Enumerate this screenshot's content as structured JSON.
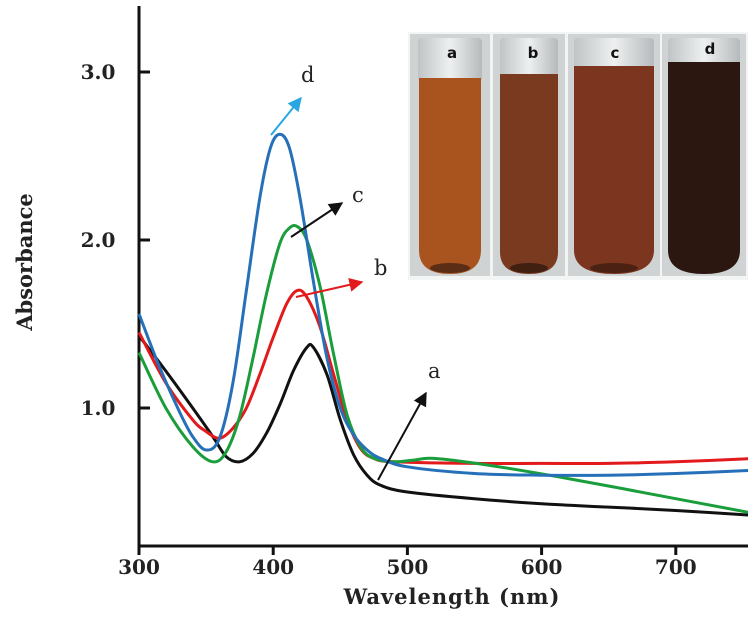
{
  "chart_data": {
    "type": "line",
    "xlabel": "Wavelength (nm)",
    "ylabel": "Absorbance",
    "xlim": [
      300,
      760
    ],
    "ylim": [
      0.32,
      3.5
    ],
    "x_ticks": [
      "300",
      "400",
      "500",
      "600",
      "700"
    ],
    "y_ticks": [
      "1.0",
      "2.0",
      "3.0"
    ],
    "grid": false,
    "series": [
      {
        "name": "a",
        "color": "#111111",
        "x": [
          300,
          320,
          340,
          355,
          365,
          375,
          385,
          395,
          405,
          415,
          425,
          430,
          440,
          450,
          460,
          470,
          480,
          500,
          550,
          600,
          650,
          700,
          760
        ],
        "y": [
          1.43,
          1.22,
          1.0,
          0.83,
          0.71,
          0.68,
          0.73,
          0.85,
          1.02,
          1.22,
          1.36,
          1.36,
          1.2,
          0.93,
          0.72,
          0.6,
          0.54,
          0.5,
          0.46,
          0.43,
          0.41,
          0.39,
          0.36
        ]
      },
      {
        "name": "b",
        "color": "#e31a1c",
        "x": [
          300,
          320,
          340,
          350,
          360,
          370,
          380,
          390,
          400,
          410,
          418,
          425,
          435,
          445,
          455,
          465,
          475,
          490,
          550,
          600,
          650,
          700,
          760
        ],
        "y": [
          1.45,
          1.15,
          0.93,
          0.86,
          0.82,
          0.88,
          1.0,
          1.2,
          1.42,
          1.62,
          1.7,
          1.66,
          1.48,
          1.2,
          0.93,
          0.76,
          0.7,
          0.68,
          0.67,
          0.67,
          0.67,
          0.68,
          0.7
        ]
      },
      {
        "name": "c",
        "color": "#1a9e3c",
        "x": [
          300,
          320,
          340,
          355,
          365,
          375,
          385,
          395,
          405,
          412,
          418,
          425,
          435,
          445,
          455,
          465,
          475,
          490,
          505,
          520,
          560,
          620,
          700,
          760
        ],
        "y": [
          1.33,
          1.0,
          0.77,
          0.68,
          0.74,
          0.95,
          1.3,
          1.68,
          1.98,
          2.07,
          2.08,
          2.0,
          1.72,
          1.32,
          0.96,
          0.77,
          0.7,
          0.68,
          0.69,
          0.7,
          0.66,
          0.58,
          0.46,
          0.37
        ]
      },
      {
        "name": "d",
        "color": "#2570b8",
        "x": [
          300,
          315,
          330,
          340,
          350,
          360,
          370,
          380,
          390,
          398,
          405,
          412,
          420,
          430,
          440,
          450,
          460,
          470,
          480,
          500,
          550,
          600,
          650,
          700,
          760
        ],
        "y": [
          1.56,
          1.25,
          0.98,
          0.83,
          0.75,
          0.82,
          1.15,
          1.7,
          2.25,
          2.55,
          2.63,
          2.55,
          2.25,
          1.75,
          1.3,
          1.0,
          0.84,
          0.75,
          0.7,
          0.65,
          0.61,
          0.6,
          0.6,
          0.61,
          0.63
        ]
      }
    ]
  },
  "inset": {
    "tubes": [
      {
        "label": "a",
        "color": "#a9541f"
      },
      {
        "label": "b",
        "color": "#7a3a1f"
      },
      {
        "label": "c",
        "color": "#7c3620"
      },
      {
        "label": "d",
        "color": "#2c1710"
      }
    ]
  }
}
